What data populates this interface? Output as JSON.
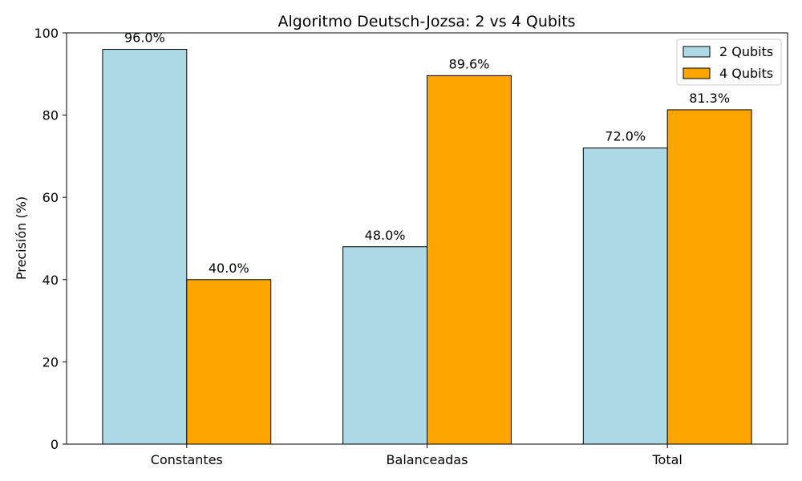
{
  "chart_data": {
    "type": "bar",
    "title": "Algoritmo Deutsch-Jozsa: 2 vs 4 Qubits",
    "xlabel": "",
    "ylabel": "Precisión (%)",
    "ylim": [
      0,
      100
    ],
    "yticks": [
      0,
      20,
      40,
      60,
      80,
      100
    ],
    "categories": [
      "Constantes",
      "Balanceadas",
      "Total"
    ],
    "series": [
      {
        "name": "2 Qubits",
        "color": "#add8e6",
        "values": [
          96.0,
          48.0,
          72.0
        ],
        "labels": [
          "96.0%",
          "48.0%",
          "72.0%"
        ]
      },
      {
        "name": "4 Qubits",
        "color": "#ffa500",
        "values": [
          40.0,
          89.6,
          81.3
        ],
        "labels": [
          "40.0%",
          "89.6%",
          "81.3%"
        ]
      }
    ],
    "grid": false,
    "legend_position": "top-right"
  }
}
